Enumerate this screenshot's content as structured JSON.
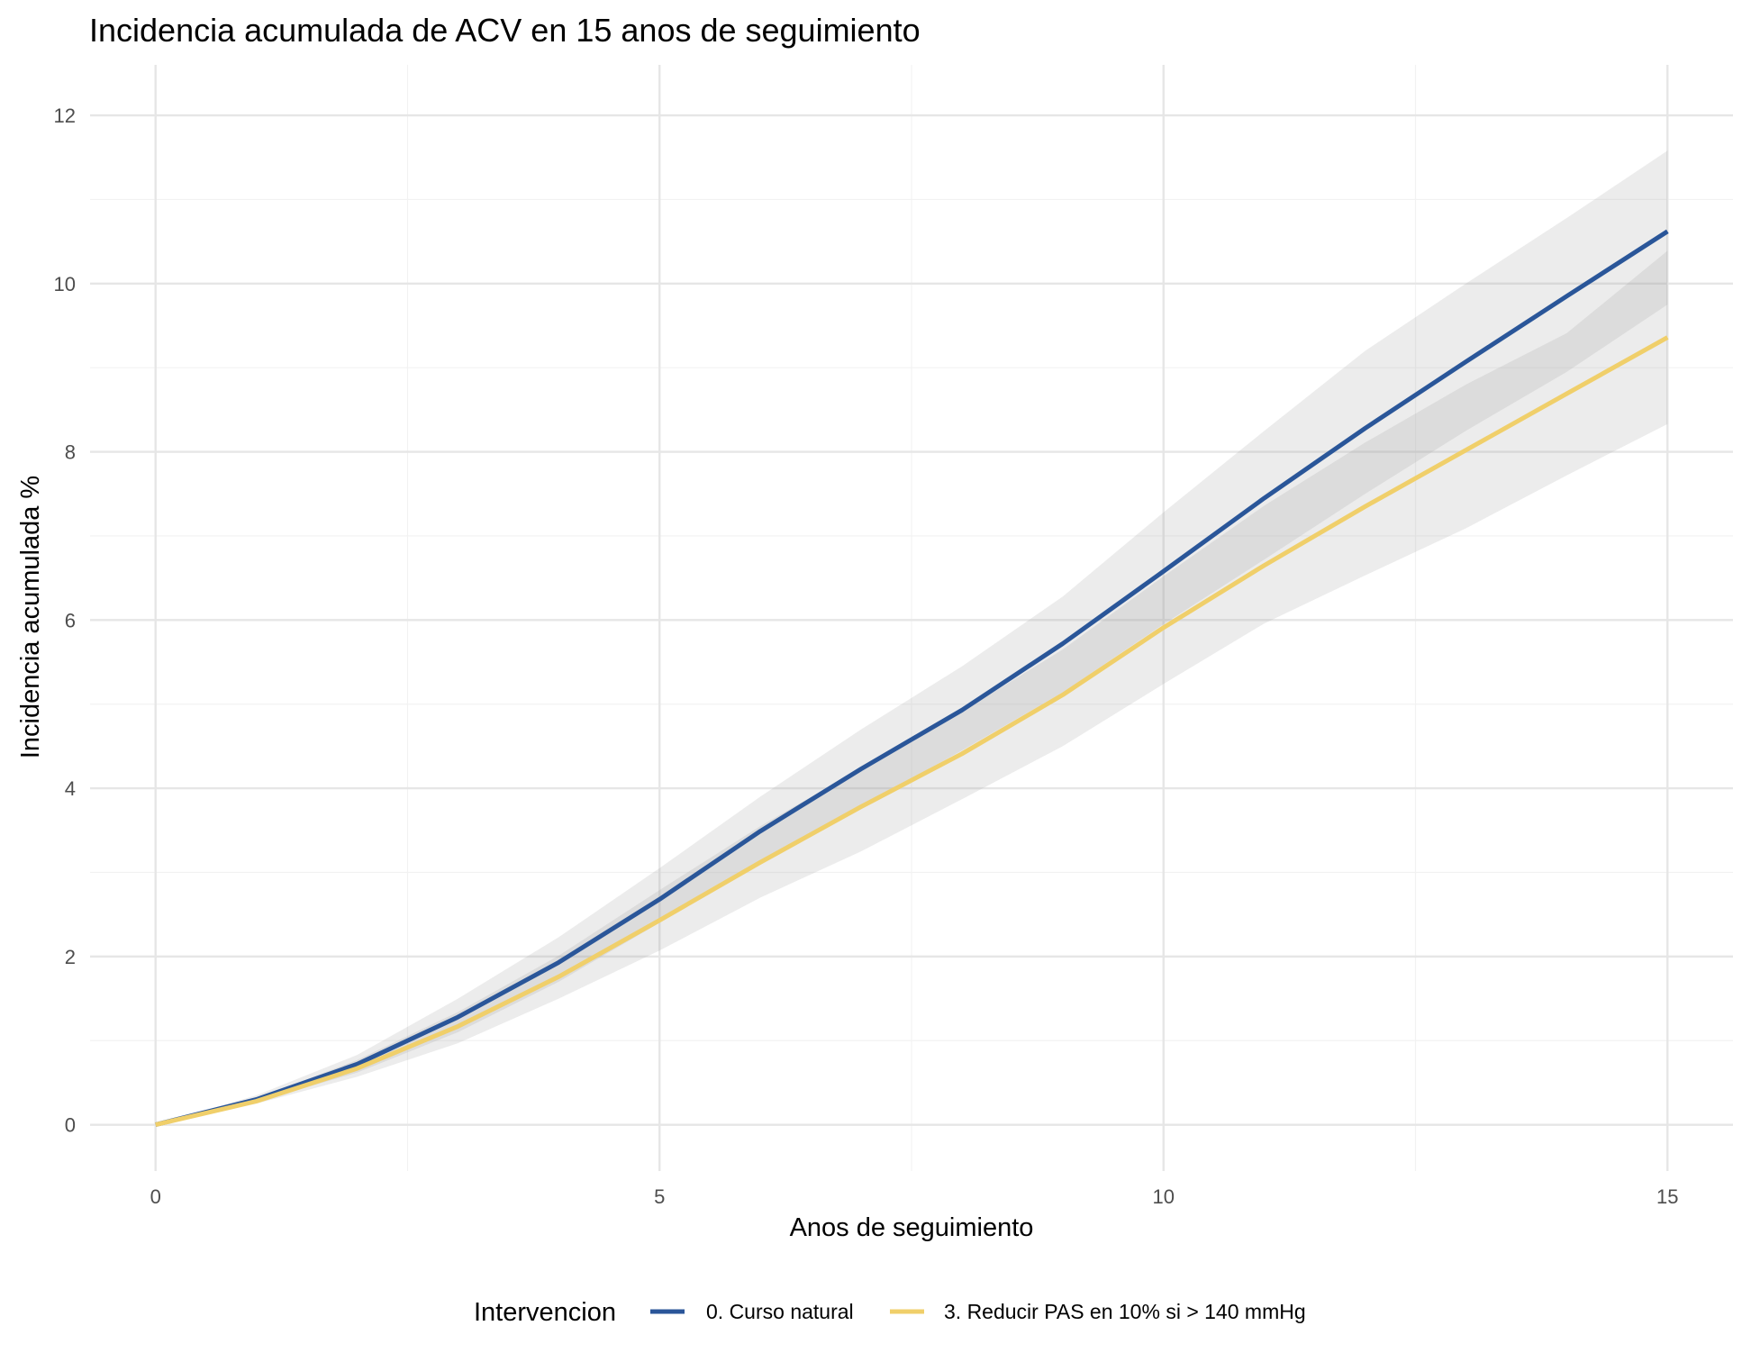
{
  "chart_data": {
    "type": "line",
    "title": "Incidencia acumulada de ACV en 15 anos de seguimiento",
    "xlabel": "Anos de seguimiento",
    "ylabel": "Incidencia acumulada %",
    "xlim": [
      -0.65,
      15.65
    ],
    "ylim": [
      -0.55,
      12.6
    ],
    "x_ticks": [
      0,
      5,
      10,
      15
    ],
    "y_ticks": [
      0,
      2,
      4,
      6,
      8,
      10,
      12
    ],
    "x_tick_labels": [
      "0",
      "5",
      "10",
      "15"
    ],
    "y_tick_labels": [
      "0",
      "2",
      "4",
      "6",
      "8",
      "10",
      "12"
    ],
    "grid": true,
    "legend_position": "bottom",
    "legend_title": "Intervencion",
    "x": [
      0,
      1,
      2,
      3,
      4,
      5,
      6,
      7,
      8,
      9,
      10,
      11,
      12,
      13,
      14,
      15
    ],
    "series": [
      {
        "name": "0. Curso natural",
        "color": "#2a5699",
        "values": [
          0,
          0.3,
          0.72,
          1.28,
          1.93,
          2.68,
          3.49,
          4.23,
          4.93,
          5.72,
          6.58,
          7.45,
          8.28,
          9.07,
          9.85,
          10.62
        ],
        "lower": [
          0,
          0.27,
          0.62,
          1.1,
          1.7,
          2.4,
          3.1,
          3.78,
          4.45,
          5.14,
          5.95,
          6.72,
          7.5,
          8.25,
          8.95,
          9.75
        ],
        "upper": [
          0,
          0.35,
          0.83,
          1.5,
          2.23,
          3.05,
          3.9,
          4.7,
          5.45,
          6.28,
          7.28,
          8.25,
          9.2,
          10.0,
          10.78,
          11.58
        ]
      },
      {
        "name": "3. Reducir PAS en 10% si > 140 mmHg",
        "color": "#f0cf6a",
        "values": [
          0,
          0.28,
          0.67,
          1.17,
          1.76,
          2.43,
          3.12,
          3.78,
          4.41,
          5.11,
          5.91,
          6.65,
          7.35,
          8.02,
          8.69,
          9.36
        ],
        "lower": [
          0,
          0.25,
          0.57,
          0.97,
          1.5,
          2.07,
          2.7,
          3.25,
          3.87,
          4.5,
          5.24,
          5.96,
          6.53,
          7.09,
          7.72,
          8.33
        ],
        "upper": [
          0,
          0.31,
          0.77,
          1.34,
          2.01,
          2.79,
          3.55,
          4.24,
          4.91,
          5.65,
          6.52,
          7.36,
          8.11,
          8.8,
          9.41,
          10.39
        ]
      }
    ]
  }
}
